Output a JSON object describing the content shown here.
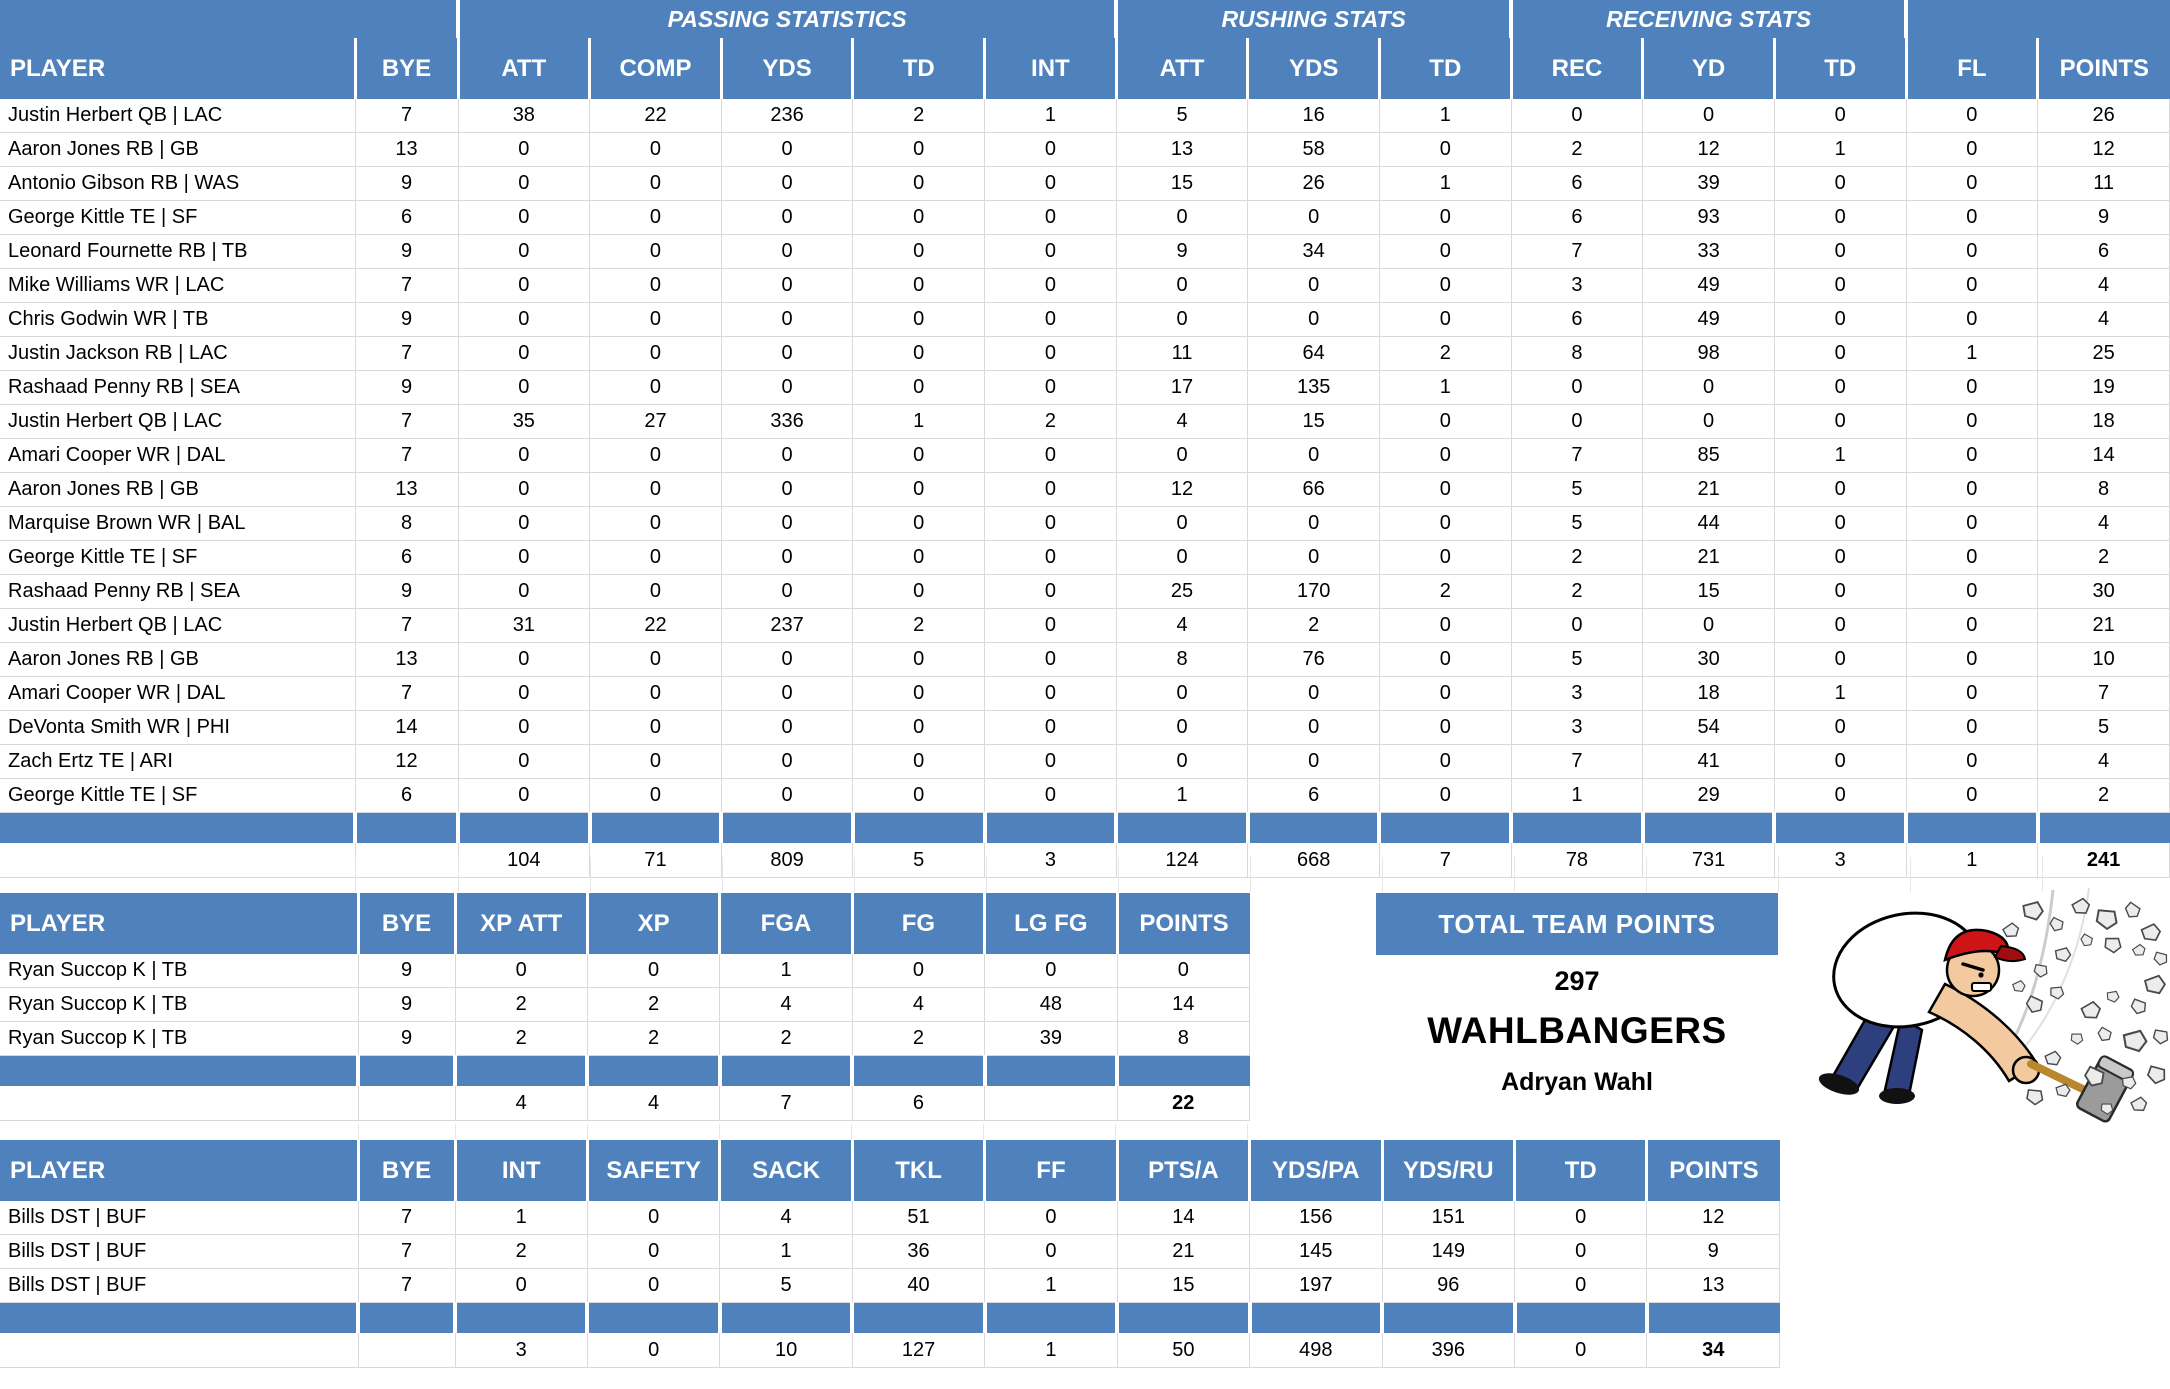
{
  "colors": {
    "header_blue": "#4F81BD",
    "gridline": "#D9D9D9",
    "text": "#000000"
  },
  "main_table": {
    "group_headers": [
      "",
      "PASSING STATISTICS",
      "RUSHING STATS",
      "RECEIVING STATS",
      ""
    ],
    "columns": [
      "PLAYER",
      "BYE",
      "ATT",
      "COMP",
      "YDS",
      "TD",
      "INT",
      "ATT",
      "YDS",
      "TD",
      "REC",
      "YD",
      "TD",
      "FL",
      "POINTS"
    ],
    "rows": [
      [
        "Justin Herbert QB | LAC",
        7,
        38,
        22,
        236,
        2,
        1,
        5,
        16,
        1,
        0,
        0,
        0,
        0,
        26
      ],
      [
        "Aaron Jones RB | GB",
        13,
        0,
        0,
        0,
        0,
        0,
        13,
        58,
        0,
        2,
        12,
        1,
        0,
        12
      ],
      [
        "Antonio Gibson RB | WAS",
        9,
        0,
        0,
        0,
        0,
        0,
        15,
        26,
        1,
        6,
        39,
        0,
        0,
        11
      ],
      [
        "George Kittle TE | SF",
        6,
        0,
        0,
        0,
        0,
        0,
        0,
        0,
        0,
        6,
        93,
        0,
        0,
        9
      ],
      [
        "Leonard Fournette RB | TB",
        9,
        0,
        0,
        0,
        0,
        0,
        9,
        34,
        0,
        7,
        33,
        0,
        0,
        6
      ],
      [
        "Mike Williams WR | LAC",
        7,
        0,
        0,
        0,
        0,
        0,
        0,
        0,
        0,
        3,
        49,
        0,
        0,
        4
      ],
      [
        "Chris Godwin WR | TB",
        9,
        0,
        0,
        0,
        0,
        0,
        0,
        0,
        0,
        6,
        49,
        0,
        0,
        4
      ],
      [
        "Justin Jackson RB | LAC",
        7,
        0,
        0,
        0,
        0,
        0,
        11,
        64,
        2,
        8,
        98,
        0,
        1,
        25
      ],
      [
        "Rashaad Penny RB | SEA",
        9,
        0,
        0,
        0,
        0,
        0,
        17,
        135,
        1,
        0,
        0,
        0,
        0,
        19
      ],
      [
        "Justin Herbert QB | LAC",
        7,
        35,
        27,
        336,
        1,
        2,
        4,
        15,
        0,
        0,
        0,
        0,
        0,
        18
      ],
      [
        "Amari Cooper WR | DAL",
        7,
        0,
        0,
        0,
        0,
        0,
        0,
        0,
        0,
        7,
        85,
        1,
        0,
        14
      ],
      [
        "Aaron Jones RB | GB",
        13,
        0,
        0,
        0,
        0,
        0,
        12,
        66,
        0,
        5,
        21,
        0,
        0,
        8
      ],
      [
        "Marquise Brown WR | BAL",
        8,
        0,
        0,
        0,
        0,
        0,
        0,
        0,
        0,
        5,
        44,
        0,
        0,
        4
      ],
      [
        "George Kittle TE | SF",
        6,
        0,
        0,
        0,
        0,
        0,
        0,
        0,
        0,
        2,
        21,
        0,
        0,
        2
      ],
      [
        "Rashaad Penny RB | SEA",
        9,
        0,
        0,
        0,
        0,
        0,
        25,
        170,
        2,
        2,
        15,
        0,
        0,
        30
      ],
      [
        "Justin Herbert QB | LAC",
        7,
        31,
        22,
        237,
        2,
        0,
        4,
        2,
        0,
        0,
        0,
        0,
        0,
        21
      ],
      [
        "Aaron Jones RB | GB",
        13,
        0,
        0,
        0,
        0,
        0,
        8,
        76,
        0,
        5,
        30,
        0,
        0,
        10
      ],
      [
        "Amari Cooper WR | DAL",
        7,
        0,
        0,
        0,
        0,
        0,
        0,
        0,
        0,
        3,
        18,
        1,
        0,
        7
      ],
      [
        "DeVonta Smith WR | PHI",
        14,
        0,
        0,
        0,
        0,
        0,
        0,
        0,
        0,
        3,
        54,
        0,
        0,
        5
      ],
      [
        "Zach Ertz TE | ARI",
        12,
        0,
        0,
        0,
        0,
        0,
        0,
        0,
        0,
        7,
        41,
        0,
        0,
        4
      ],
      [
        "George Kittle TE | SF",
        6,
        0,
        0,
        0,
        0,
        0,
        1,
        6,
        0,
        1,
        29,
        0,
        0,
        2
      ]
    ],
    "totals": [
      "",
      "",
      104,
      71,
      809,
      5,
      3,
      124,
      668,
      7,
      78,
      731,
      3,
      1,
      241
    ]
  },
  "kicker_table": {
    "columns": [
      "PLAYER",
      "BYE",
      "XP ATT",
      "XP",
      "FGA",
      "FG",
      "LG FG",
      "POINTS"
    ],
    "rows": [
      [
        "Ryan Succop K | TB",
        9,
        0,
        0,
        1,
        0,
        0,
        0
      ],
      [
        "Ryan Succop K | TB",
        9,
        2,
        2,
        4,
        4,
        48,
        14
      ],
      [
        "Ryan Succop K | TB",
        9,
        2,
        2,
        2,
        2,
        39,
        8
      ]
    ],
    "totals": [
      "",
      "",
      4,
      4,
      7,
      6,
      "",
      22
    ]
  },
  "dst_table": {
    "columns": [
      "PLAYER",
      "BYE",
      "INT",
      "SAFETY",
      "SACK",
      "TKL",
      "FF",
      "PTS/A",
      "YDS/PA",
      "YDS/RU",
      "TD",
      "POINTS"
    ],
    "rows": [
      [
        "Bills DST | BUF",
        7,
        1,
        0,
        4,
        51,
        0,
        14,
        156,
        151,
        0,
        12
      ],
      [
        "Bills DST | BUF",
        7,
        2,
        0,
        1,
        36,
        0,
        21,
        145,
        149,
        0,
        9
      ],
      [
        "Bills DST | BUF",
        7,
        0,
        0,
        5,
        40,
        1,
        15,
        197,
        96,
        0,
        13
      ]
    ],
    "totals": [
      "",
      "",
      3,
      0,
      10,
      127,
      1,
      50,
      498,
      396,
      0,
      34
    ]
  },
  "team_summary": {
    "title": "TOTAL TEAM POINTS",
    "points": "297",
    "team_name": "WAHLBANGERS",
    "owner": "Adryan Wahl"
  },
  "illustration_alt": "cartoon man smashing rocks with a sledgehammer"
}
